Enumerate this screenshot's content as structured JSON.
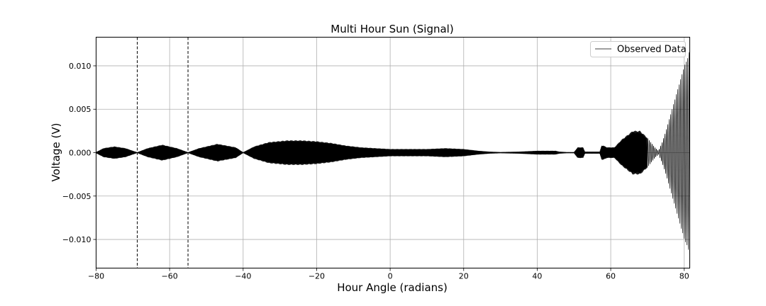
{
  "chart_data": {
    "type": "line",
    "title": "Multi Hour Sun (Signal)",
    "xlabel": "Hour Angle (radians)",
    "ylabel": "Voltage (V)",
    "xlim": [
      -80,
      81.5
    ],
    "ylim": [
      -0.0133,
      0.0133
    ],
    "xticks": [
      -80,
      -60,
      -40,
      -20,
      0,
      20,
      40,
      60,
      80
    ],
    "xtick_labels": [
      "−80",
      "−60",
      "−40",
      "−20",
      "0",
      "20",
      "40",
      "60",
      "80"
    ],
    "yticks": [
      -0.01,
      -0.005,
      0.0,
      0.005,
      0.01
    ],
    "ytick_labels": [
      "−0.010",
      "−0.005",
      "0.000",
      "0.005",
      "0.010"
    ],
    "grid": true,
    "legend": {
      "position": "top-right",
      "entries": [
        "Observed Data"
      ]
    },
    "vlines": [
      -68.8,
      -55.0
    ],
    "series": [
      {
        "name": "Observed Data",
        "color": "#000000",
        "envelope": {
          "x": [
            -80,
            -78,
            -75,
            -72,
            -70,
            -68.8,
            -66,
            -62,
            -58,
            -55.0,
            -52,
            -47,
            -42,
            -40,
            -37,
            -33,
            -28,
            -24,
            -20,
            -16,
            -12,
            -8,
            -4,
            0,
            5,
            10,
            15,
            20,
            24,
            27,
            30,
            35,
            40,
            45,
            46,
            48,
            50,
            51,
            51.5,
            52.5,
            53,
            55,
            57,
            57.5,
            58,
            59,
            61,
            63,
            66,
            68,
            70,
            72,
            73,
            74,
            75,
            76,
            77,
            78,
            79,
            80,
            81,
            81.5
          ],
          "amp": [
            5e-05,
            0.0005,
            0.0007,
            0.0005,
            0.0002,
            3e-05,
            0.0005,
            0.0009,
            0.0005,
            3e-05,
            0.0005,
            0.001,
            0.0006,
            3e-05,
            0.0007,
            0.0012,
            0.0014,
            0.0014,
            0.0013,
            0.0011,
            0.0008,
            0.0006,
            0.0005,
            0.0004,
            0.0004,
            0.0004,
            0.0005,
            0.0004,
            0.0002,
            0.0001,
            5e-05,
            0.0001,
            0.0002,
            0.0002,
            0.0001,
            5e-05,
            5e-05,
            0.0006,
            0.0006,
            0.0006,
            0.0001,
            0.0001,
            0.0001,
            0.0008,
            0.0008,
            0.0006,
            0.0006,
            0.0015,
            0.0025,
            0.0025,
            0.0017,
            0.0006,
            0.0002,
            0.0012,
            0.0025,
            0.004,
            0.0055,
            0.007,
            0.0085,
            0.01,
            0.011,
            0.012
          ]
        }
      }
    ]
  }
}
